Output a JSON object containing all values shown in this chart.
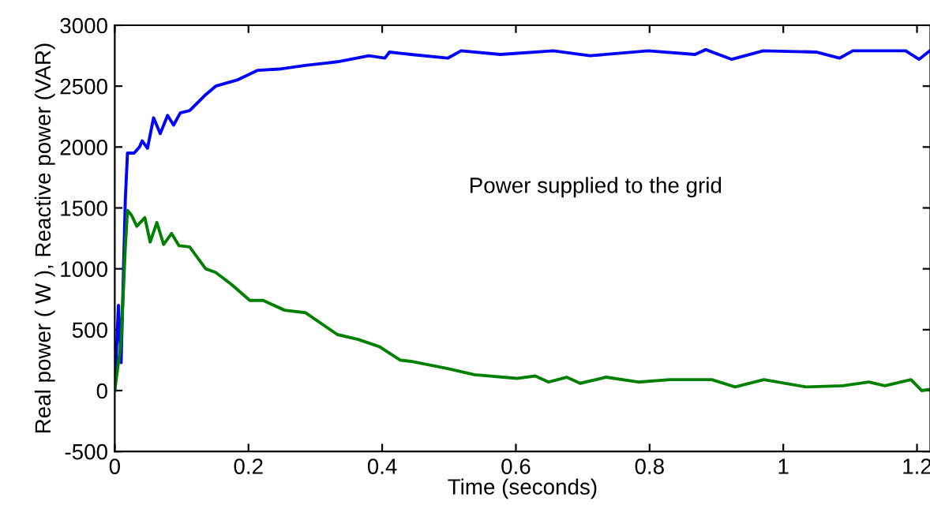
{
  "chart_data": {
    "type": "line",
    "xlabel": "Time (seconds)",
    "ylabel": "Real power ( W ), Reactive power (VAR)",
    "annotations": [
      "Power supplied to the grid"
    ],
    "xlim": [
      0,
      1.22
    ],
    "xticks": [
      0,
      0.2,
      0.4,
      0.6,
      0.8,
      1,
      1.2
    ],
    "ylim": [
      -500,
      3000
    ],
    "yticks": [
      -500,
      0,
      500,
      1000,
      1500,
      2000,
      2500,
      3000
    ],
    "grid": false,
    "legend": false,
    "line_style": "solid",
    "series": [
      {
        "color": "#0000ff",
        "x": [
          0,
          0.0055,
          0.0095,
          0.0158,
          0.019,
          0.029,
          0.037,
          0.041,
          0.049,
          0.058,
          0.068,
          0.079,
          0.088,
          0.098,
          0.112,
          0.136,
          0.151,
          0.183,
          0.214,
          0.246,
          0.285,
          0.317,
          0.333,
          0.38,
          0.404,
          0.411,
          0.443,
          0.498,
          0.518,
          0.577,
          0.656,
          0.711,
          0.798,
          0.868,
          0.884,
          0.923,
          0.97,
          1.049,
          1.084,
          1.104,
          1.183,
          1.203,
          1.219
        ],
        "values": [
          0,
          700,
          230,
          1570,
          1950,
          1950,
          2000,
          2050,
          1990,
          2240,
          2110,
          2260,
          2180,
          2280,
          2300,
          2430,
          2500,
          2550,
          2630,
          2640,
          2670,
          2690,
          2700,
          2750,
          2730,
          2780,
          2760,
          2730,
          2790,
          2760,
          2790,
          2750,
          2790,
          2760,
          2800,
          2720,
          2790,
          2780,
          2730,
          2790,
          2790,
          2720,
          2790
        ]
      },
      {
        "color": "#008000",
        "x": [
          0,
          0.0095,
          0.0158,
          0.019,
          0.025,
          0.033,
          0.045,
          0.053,
          0.063,
          0.073,
          0.085,
          0.096,
          0.112,
          0.136,
          0.151,
          0.175,
          0.202,
          0.222,
          0.254,
          0.285,
          0.333,
          0.364,
          0.396,
          0.427,
          0.443,
          0.498,
          0.538,
          0.601,
          0.629,
          0.649,
          0.676,
          0.696,
          0.735,
          0.783,
          0.83,
          0.893,
          0.928,
          0.971,
          1.034,
          1.089,
          1.128,
          1.152,
          1.191,
          1.207,
          1.219
        ],
        "values": [
          0,
          400,
          1180,
          1480,
          1440,
          1350,
          1420,
          1220,
          1380,
          1200,
          1290,
          1190,
          1180,
          1000,
          970,
          870,
          740,
          740,
          660,
          640,
          460,
          420,
          360,
          250,
          240,
          180,
          130,
          100,
          120,
          70,
          110,
          60,
          110,
          70,
          90,
          90,
          30,
          90,
          30,
          40,
          70,
          40,
          90,
          0,
          10
        ]
      }
    ]
  }
}
